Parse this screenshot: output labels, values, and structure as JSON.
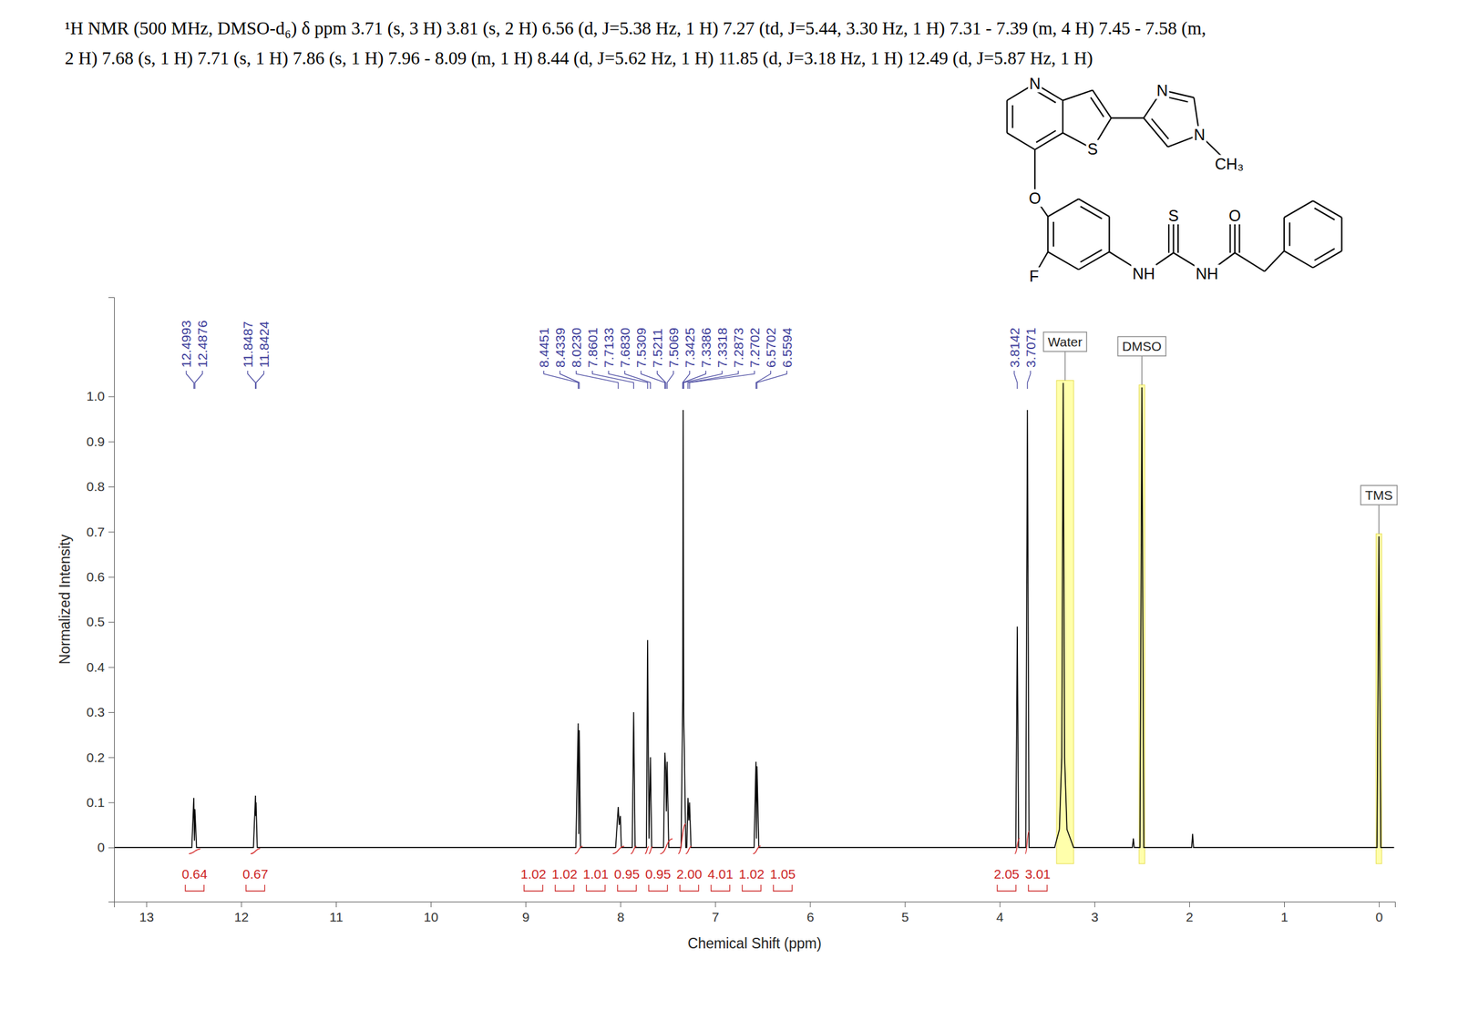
{
  "header": {
    "lines": [
      "¹H NMR (500 MHz, DMSO-d₆) δ ppm 3.71 (s, 3 H) 3.81 (s, 2 H) 6.56 (d, J=5.38 Hz, 1 H) 7.27 (td, J=5.44, 3.30 Hz, 1 H) 7.31 - 7.39 (m, 4 H) 7.45 - 7.58 (m,",
      "2 H) 7.68 (s, 1 H) 7.71 (s, 1 H) 7.86 (s, 1 H) 7.96 - 8.09 (m, 1 H) 8.44 (d,  J=5.62 Hz, 1 H) 11.85 (d, J=3.18 Hz, 1 H) 12.49 (d, J=5.87 Hz, 1 H)"
    ]
  },
  "structure": {
    "atoms": [
      "N",
      "S",
      "N",
      "N",
      "CH₃",
      "O",
      "F",
      "NH",
      "NH",
      "S",
      "O"
    ]
  },
  "chart_data": {
    "type": "line",
    "x_label": "Chemical Shift (ppm)",
    "y_label": "Normalized Intensity",
    "color": "#000000",
    "x": [
      13.34,
      12.52,
      12.4993,
      12.493,
      12.4876,
      12.47,
      11.87,
      11.8487,
      11.8455,
      11.8424,
      11.83,
      8.47,
      8.4451,
      8.439,
      8.4339,
      8.42,
      8.05,
      8.035,
      8.023,
      8.012,
      8.0,
      7.99,
      7.875,
      7.8601,
      7.845,
      7.725,
      7.7133,
      7.698,
      7.683,
      7.67,
      7.545,
      7.5309,
      7.5211,
      7.515,
      7.5069,
      7.49,
      7.36,
      7.3425,
      7.3386,
      7.3318,
      7.31,
      7.3,
      7.2873,
      7.278,
      7.2702,
      7.255,
      6.59,
      6.5702,
      6.565,
      6.5594,
      6.54,
      3.83,
      3.8142,
      3.8,
      3.725,
      3.7071,
      3.69,
      3.42,
      3.37,
      3.345,
      3.33,
      3.315,
      3.29,
      3.22,
      2.6,
      2.59,
      2.58,
      2.52,
      2.5,
      2.48,
      1.975,
      1.965,
      1.955,
      0.02,
      0.0,
      -0.02,
      -0.16
    ],
    "values": [
      0,
      0,
      0.11,
      0.015,
      0.085,
      0,
      0,
      0.115,
      0.07,
      0.1,
      0,
      0,
      0.275,
      0.03,
      0.26,
      0,
      0,
      0.05,
      0.09,
      0.05,
      0.07,
      0,
      0,
      0.3,
      0,
      0,
      0.46,
      0.02,
      0.2,
      0,
      0,
      0.21,
      0.17,
      0.08,
      0.19,
      0,
      0,
      0.33,
      0.97,
      0.3,
      0,
      0,
      0.11,
      0.06,
      0.1,
      0,
      0,
      0.19,
      0.02,
      0.18,
      0,
      0,
      0.49,
      0,
      0,
      0.97,
      0,
      0,
      0.04,
      0.2,
      1.03,
      0.2,
      0.04,
      0,
      0,
      0.02,
      0,
      0,
      1.02,
      0,
      0,
      0.03,
      0,
      0,
      0.69,
      0,
      0
    ],
    "xlim": [
      13.34,
      -0.17
    ],
    "ylim": [
      -0.12,
      1.22
    ],
    "xticks": [
      13,
      12,
      11,
      10,
      9,
      8,
      7,
      6,
      5,
      4,
      3,
      2,
      1,
      0
    ],
    "yticks": [
      0,
      0.1,
      0.2,
      0.3,
      0.4,
      0.5,
      0.6,
      0.7,
      0.8,
      0.9,
      {
        "value": 1,
        "label": "1.0"
      }
    ],
    "peak_labels": [
      {
        "value": 12.4993,
        "label": "12.4993"
      },
      {
        "value": 12.4876,
        "label": "12.4876"
      },
      {
        "value": 11.8487,
        "label": "11.8487"
      },
      {
        "value": 11.8424,
        "label": "11.8424"
      },
      {
        "value": 8.4451,
        "label": "8.4451"
      },
      {
        "value": 8.4339,
        "label": "8.4339"
      },
      {
        "value": 8.023,
        "label": "8.0230"
      },
      {
        "value": 7.8601,
        "label": "7.8601"
      },
      {
        "value": 7.7133,
        "label": "7.7133"
      },
      {
        "value": 7.683,
        "label": "7.6830"
      },
      {
        "value": 7.5309,
        "label": "7.5309"
      },
      {
        "value": 7.5211,
        "label": "7.5211"
      },
      {
        "value": 7.5069,
        "label": "7.5069"
      },
      {
        "value": 7.3425,
        "label": "7.3425"
      },
      {
        "value": 7.3386,
        "label": "7.3386"
      },
      {
        "value": 7.3318,
        "label": "7.3318"
      },
      {
        "value": 7.2873,
        "label": "7.2873"
      },
      {
        "value": 7.2702,
        "label": "7.2702"
      },
      {
        "value": 6.5702,
        "label": "6.5702"
      },
      {
        "value": 6.5594,
        "label": "6.5594"
      },
      {
        "value": 3.8142,
        "label": "3.8142"
      },
      {
        "value": 3.7071,
        "label": "3.7071"
      }
    ],
    "integrals": [
      {
        "range": [
          12.55,
          12.43
        ],
        "value": 0.64,
        "label": "0.64"
      },
      {
        "range": [
          11.9,
          11.8
        ],
        "value": 0.67,
        "label": "0.67"
      },
      {
        "range": [
          8.48,
          8.4
        ],
        "value": 1.02,
        "label": "1.02"
      },
      {
        "range": [
          8.08,
          7.96
        ],
        "value": 1.02,
        "label": "1.02"
      },
      {
        "range": [
          7.89,
          7.83
        ],
        "value": 1.01,
        "label": "1.01"
      },
      {
        "range": [
          7.74,
          7.7
        ],
        "value": 0.95,
        "label": "0.95"
      },
      {
        "range": [
          7.7,
          7.66
        ],
        "value": 0.95,
        "label": "0.95"
      },
      {
        "range": [
          7.58,
          7.45
        ],
        "value": 2,
        "label": "2.00"
      },
      {
        "range": [
          7.39,
          7.31
        ],
        "value": 4.01,
        "label": "4.01"
      },
      {
        "range": [
          7.31,
          7.25
        ],
        "value": 1.02,
        "label": "1.02"
      },
      {
        "range": [
          6.6,
          6.52
        ],
        "value": 1.05,
        "label": "1.05"
      },
      {
        "range": [
          3.84,
          3.79
        ],
        "value": 2.05,
        "label": "2.05"
      },
      {
        "range": [
          3.73,
          3.69
        ],
        "value": 3.01,
        "label": "3.01"
      }
    ],
    "regions": [
      {
        "label": "Water",
        "range": [
          3.4,
          3.22
        ]
      },
      {
        "label": "DMSO",
        "range": [
          2.53,
          2.47
        ]
      },
      {
        "label": "TMS",
        "range": [
          0.03,
          -0.03
        ]
      }
    ]
  }
}
